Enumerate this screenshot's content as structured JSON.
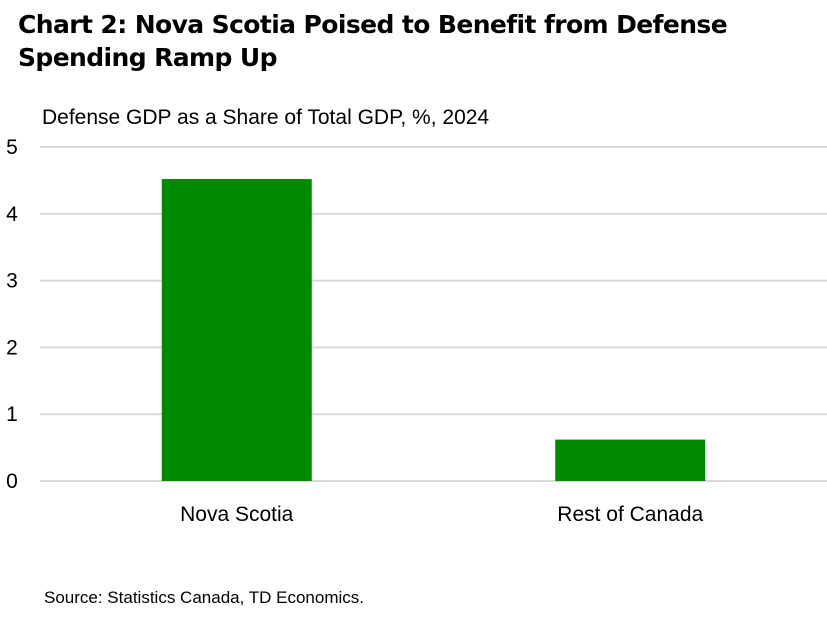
{
  "chart_data": {
    "type": "bar",
    "title": "Chart 2: Nova Scotia Poised to Benefit from Defense Spending Ramp Up",
    "subtitle": "Defense GDP as a Share of Total GDP, %, 2024",
    "categories": [
      "Nova Scotia",
      "Rest of Canada"
    ],
    "values": [
      4.52,
      0.62
    ],
    "xlabel": "",
    "ylabel": "",
    "ylim": [
      0,
      5
    ],
    "yticks": [
      "0",
      "1",
      "2",
      "3",
      "4",
      "5"
    ],
    "grid": true,
    "legend": "none",
    "bar_color": "#008a00",
    "grid_color": "#d9d9d9"
  },
  "source": "Source: Statistics Canada, TD Economics."
}
